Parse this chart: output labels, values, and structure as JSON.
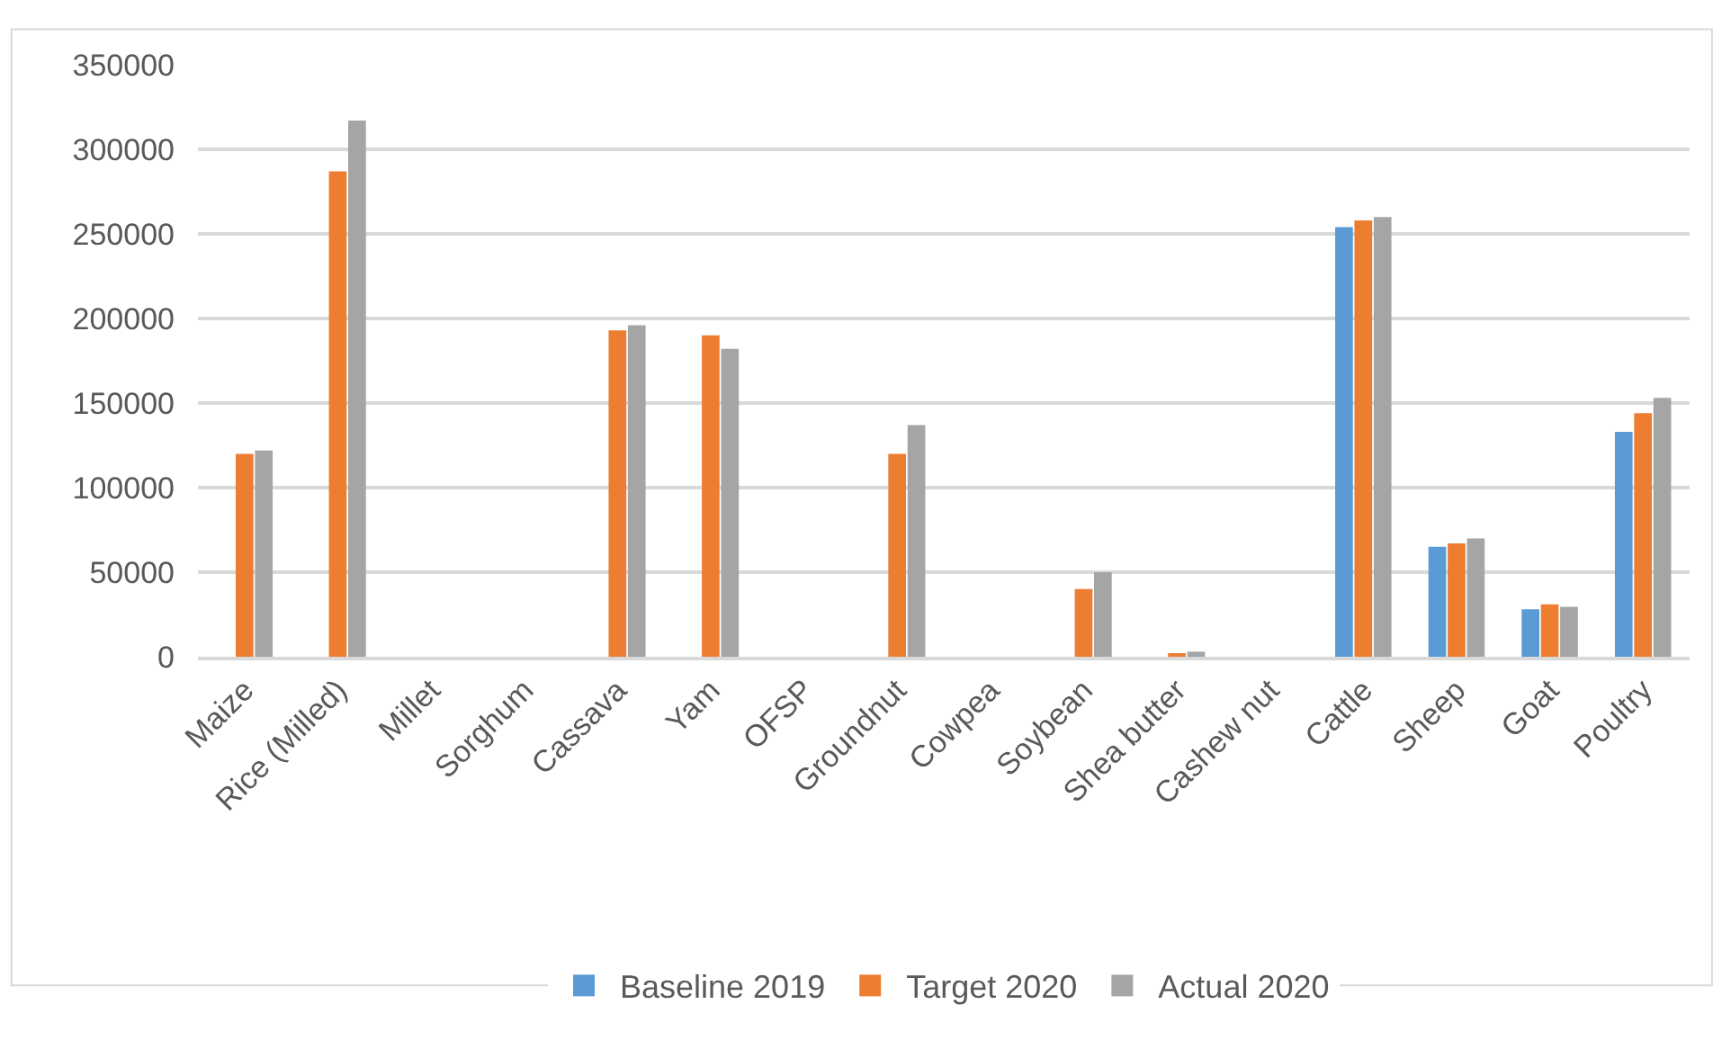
{
  "chart_data": {
    "type": "bar",
    "categories": [
      "Maize",
      "Rice (Milled)",
      "Millet",
      "Sorghum",
      "Cassava",
      "Yam",
      "OFSP",
      "Groundnut",
      "Cowpea",
      "Soybean",
      "Shea butter",
      "Cashew nut",
      "Cattle",
      "Sheep",
      "Goat",
      "Poultry"
    ],
    "series": [
      {
        "name": "Baseline 2019",
        "color": "#5b9bd5",
        "values": [
          null,
          null,
          null,
          null,
          null,
          null,
          null,
          null,
          null,
          null,
          null,
          null,
          254000,
          65000,
          28000,
          133000
        ]
      },
      {
        "name": "Target 2020",
        "color": "#ed7d31",
        "values": [
          120000,
          287000,
          null,
          null,
          193000,
          190000,
          null,
          120000,
          null,
          40000,
          2000,
          null,
          258000,
          67000,
          31000,
          144000
        ]
      },
      {
        "name": "Actual 2020",
        "color": "#a5a5a5",
        "values": [
          122000,
          317000,
          null,
          null,
          196000,
          182000,
          null,
          137000,
          null,
          50000,
          3000,
          null,
          260000,
          70000,
          29500,
          153000
        ]
      }
    ],
    "ylim": [
      0,
      350000
    ],
    "yticks": [
      0,
      50000,
      100000,
      150000,
      200000,
      250000,
      300000,
      350000
    ],
    "grid": "y",
    "legend": "bottom"
  }
}
